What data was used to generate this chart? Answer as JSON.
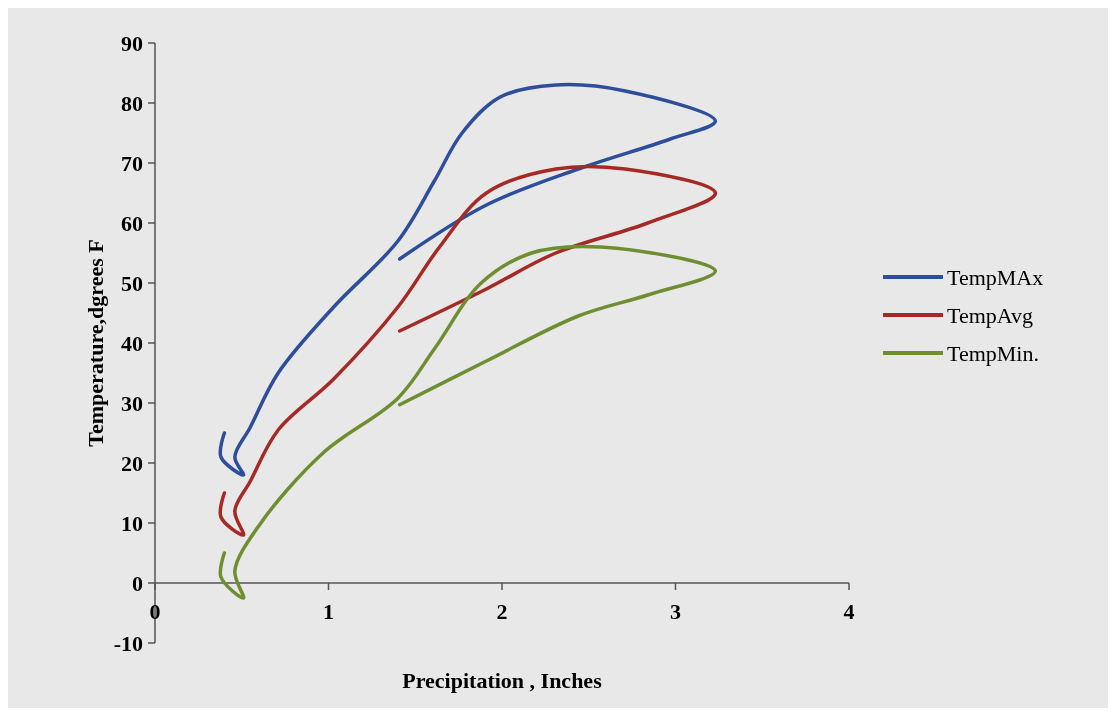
{
  "chart_data": {
    "type": "line",
    "xlabel": "Precipitation , Inches",
    "ylabel": "Temperature,dgrees F",
    "xlim": [
      0,
      4
    ],
    "xticks": [
      0,
      1,
      2,
      3,
      4
    ],
    "ylim": [
      -10,
      90
    ],
    "yticks": [
      -10,
      0,
      10,
      20,
      30,
      40,
      50,
      60,
      70,
      80,
      90
    ],
    "legend": "right",
    "marker": "none",
    "line_style": "solid",
    "series": [
      {
        "name": "TempMAx",
        "color": "#2e4d9a",
        "x": [
          0.4,
          0.38,
          0.51,
          0.46,
          0.55,
          0.71,
          1.03,
          1.4,
          1.61,
          1.77,
          1.99,
          2.31,
          2.71,
          3.23,
          2.97,
          2.44,
          1.91,
          1.41
        ],
        "values": [
          25,
          21,
          18,
          21,
          26,
          35,
          46,
          57,
          67,
          75,
          81,
          83,
          82,
          77,
          74,
          69,
          63,
          54
        ]
      },
      {
        "name": "TempAvg",
        "color": "#a52a25",
        "x": [
          0.4,
          0.38,
          0.51,
          0.46,
          0.55,
          0.71,
          1.03,
          1.4,
          1.64,
          1.91,
          2.31,
          2.71,
          3.23,
          2.84,
          2.31,
          1.91,
          1.41
        ],
        "values": [
          15,
          11,
          8,
          12,
          17,
          25.5,
          34,
          46,
          56,
          65,
          69,
          69,
          65,
          60,
          55,
          49,
          42
        ]
      },
      {
        "name": "TempMin.",
        "color": "#6f8e32",
        "x": [
          0.4,
          0.38,
          0.51,
          0.46,
          0.6,
          0.97,
          1.4,
          1.61,
          1.88,
          2.17,
          2.57,
          3.23,
          2.84,
          2.44,
          1.91,
          1.41
        ],
        "values": [
          5,
          1,
          -2.5,
          2,
          9.6,
          21.7,
          30.8,
          39,
          50,
          55,
          56,
          52,
          48,
          44.5,
          37,
          29.7
        ]
      }
    ]
  }
}
